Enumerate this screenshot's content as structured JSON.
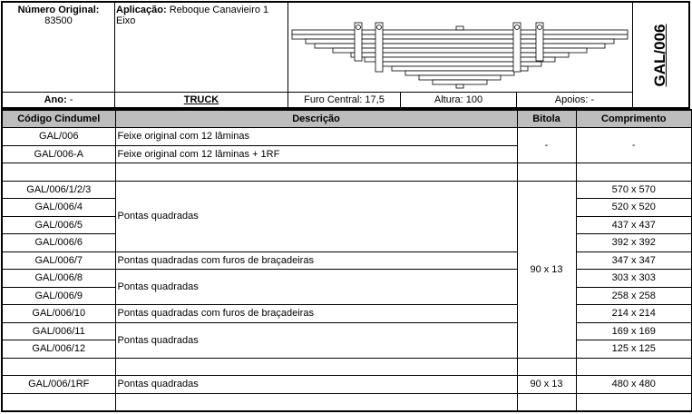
{
  "header": {
    "numero_original_label": "Número Original:",
    "numero_original": "83500",
    "aplicacao_label": "Aplicação:",
    "aplicacao": " Reboque Canavieiro 1 Eixo",
    "code": "GAL/006",
    "ano_label": "Ano:",
    "ano": " -",
    "type": "TRUCK",
    "furo_central": "Furo Central: 17,5",
    "altura": "Altura: 100",
    "apoios": "Apoios: -"
  },
  "table": {
    "columns": [
      "Código Cindumel",
      "Descrição",
      "Bitola",
      "Comprimento"
    ],
    "rows": [
      {
        "code": "GAL/006",
        "desc": "Feixe original com 12 lâminas",
        "bitola": "-",
        "comp": "-"
      },
      {
        "code": "GAL/006-A",
        "desc": "Feixe original com 12 lâminas + 1RF"
      },
      {
        "code": "",
        "desc": "",
        "bitola": "",
        "comp": ""
      },
      {
        "code": "GAL/006/1/2/3",
        "desc": "Pontas quadradas",
        "bitola": "90 x 13",
        "comp": "570 x 570"
      },
      {
        "code": "GAL/006/4",
        "comp": "520 x 520"
      },
      {
        "code": "GAL/006/5",
        "comp": "437 x 437"
      },
      {
        "code": "GAL/006/6",
        "comp": "392 x 392"
      },
      {
        "code": "GAL/006/7",
        "desc": "Pontas quadradas com furos de braçadeiras",
        "comp": "347 x 347"
      },
      {
        "code": "GAL/006/8",
        "desc": "Pontas quadradas",
        "comp": "303 x 303"
      },
      {
        "code": "GAL/006/9",
        "comp": "258 x 258"
      },
      {
        "code": "GAL/006/10",
        "desc": "Pontas quadradas com furos de braçadeiras",
        "comp": "214 x 214"
      },
      {
        "code": "GAL/006/11",
        "desc": "Pontas quadradas",
        "comp": "169 x 169"
      },
      {
        "code": "GAL/006/12",
        "comp": "125 x 125"
      },
      {
        "code": "",
        "desc": "",
        "bitola": "",
        "comp": ""
      },
      {
        "code": "GAL/006/1RF",
        "desc": "Pontas quadradas",
        "bitola": "90 x 13",
        "comp": "480 x 480"
      },
      {
        "code": "",
        "desc": "",
        "bitola": "",
        "comp": ""
      }
    ]
  }
}
